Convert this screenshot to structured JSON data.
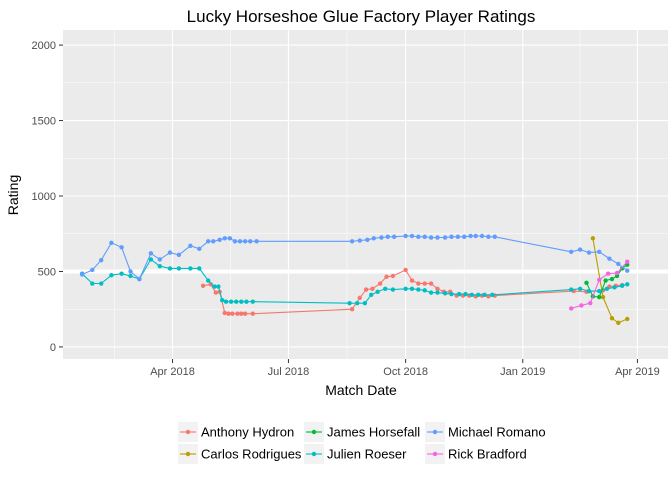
{
  "chart_data": {
    "type": "line",
    "title": "Lucky Horseshoe Glue Factory Player Ratings",
    "xlabel": "Match Date",
    "ylabel": "Rating",
    "xlim": [
      "2018-01-05",
      "2019-04-25"
    ],
    "ylim": [
      -80,
      2100
    ],
    "yticks": [
      0,
      500,
      1000,
      1500,
      2000
    ],
    "xticks": [
      {
        "date": "2018-04-01",
        "label": "Apr 2018"
      },
      {
        "date": "2018-07-01",
        "label": "Jul 2018"
      },
      {
        "date": "2018-10-01",
        "label": "Oct 2018"
      },
      {
        "date": "2019-01-01",
        "label": "Jan 2019"
      },
      {
        "date": "2019-04-01",
        "label": "Apr 2019"
      }
    ],
    "reference_line": 500,
    "grid": true,
    "legend_position": "bottom",
    "series": [
      {
        "name": "Anthony Hydron",
        "color": "#F8766D",
        "points": [
          [
            "2018-04-25",
            405
          ],
          [
            "2018-05-01",
            415
          ],
          [
            "2018-05-05",
            360
          ],
          [
            "2018-05-08",
            365
          ],
          [
            "2018-05-12",
            225
          ],
          [
            "2018-05-15",
            220
          ],
          [
            "2018-05-18",
            220
          ],
          [
            "2018-05-22",
            220
          ],
          [
            "2018-05-25",
            220
          ],
          [
            "2018-05-28",
            220
          ],
          [
            "2018-06-03",
            220
          ],
          [
            "2018-08-20",
            250
          ],
          [
            "2018-08-26",
            325
          ],
          [
            "2018-08-31",
            380
          ],
          [
            "2018-09-05",
            385
          ],
          [
            "2018-09-11",
            420
          ],
          [
            "2018-09-16",
            465
          ],
          [
            "2018-09-21",
            470
          ],
          [
            "2018-10-01",
            510
          ],
          [
            "2018-10-06",
            440
          ],
          [
            "2018-10-11",
            420
          ],
          [
            "2018-10-16",
            420
          ],
          [
            "2018-10-21",
            420
          ],
          [
            "2018-10-26",
            385
          ],
          [
            "2018-10-31",
            365
          ],
          [
            "2018-11-05",
            365
          ],
          [
            "2018-11-10",
            340
          ],
          [
            "2018-11-15",
            340
          ],
          [
            "2018-11-20",
            340
          ],
          [
            "2018-11-25",
            335
          ],
          [
            "2018-11-30",
            340
          ],
          [
            "2018-12-05",
            335
          ],
          [
            "2018-12-10",
            340
          ],
          [
            "2019-02-10",
            370
          ],
          [
            "2019-02-20",
            365
          ],
          [
            "2019-03-05",
            375
          ],
          [
            "2019-03-10",
            400
          ],
          [
            "2019-03-15",
            405
          ],
          [
            "2019-03-20",
            410
          ]
        ]
      },
      {
        "name": "Carlos Rodrigues",
        "color": "#B79F00",
        "points": [
          [
            "2019-02-25",
            720
          ],
          [
            "2019-03-05",
            330
          ],
          [
            "2019-03-12",
            190
          ],
          [
            "2019-03-17",
            160
          ],
          [
            "2019-03-24",
            185
          ]
        ]
      },
      {
        "name": "James Horsefall",
        "color": "#00BA38",
        "points": [
          [
            "2019-02-20",
            425
          ],
          [
            "2019-02-25",
            335
          ],
          [
            "2019-03-02",
            330
          ],
          [
            "2019-03-07",
            440
          ],
          [
            "2019-03-12",
            450
          ],
          [
            "2019-03-16",
            470
          ],
          [
            "2019-03-20",
            520
          ],
          [
            "2019-03-24",
            545
          ]
        ]
      },
      {
        "name": "Julien Roeser",
        "color": "#00BFC4",
        "points": [
          [
            "2018-01-20",
            485
          ],
          [
            "2018-01-28",
            420
          ],
          [
            "2018-02-04",
            420
          ],
          [
            "2018-02-12",
            475
          ],
          [
            "2018-02-20",
            485
          ],
          [
            "2018-02-27",
            470
          ],
          [
            "2018-03-06",
            450
          ],
          [
            "2018-03-15",
            580
          ],
          [
            "2018-03-22",
            535
          ],
          [
            "2018-03-30",
            520
          ],
          [
            "2018-04-06",
            520
          ],
          [
            "2018-04-15",
            520
          ],
          [
            "2018-04-22",
            520
          ],
          [
            "2018-04-29",
            440
          ],
          [
            "2018-05-04",
            400
          ],
          [
            "2018-05-07",
            400
          ],
          [
            "2018-05-10",
            310
          ],
          [
            "2018-05-13",
            300
          ],
          [
            "2018-05-17",
            300
          ],
          [
            "2018-05-21",
            300
          ],
          [
            "2018-05-25",
            300
          ],
          [
            "2018-05-29",
            300
          ],
          [
            "2018-06-03",
            300
          ],
          [
            "2018-08-18",
            290
          ],
          [
            "2018-08-24",
            290
          ],
          [
            "2018-08-30",
            290
          ],
          [
            "2018-09-04",
            345
          ],
          [
            "2018-09-09",
            365
          ],
          [
            "2018-09-15",
            385
          ],
          [
            "2018-09-21",
            380
          ],
          [
            "2018-10-01",
            385
          ],
          [
            "2018-10-06",
            385
          ],
          [
            "2018-10-11",
            380
          ],
          [
            "2018-10-16",
            375
          ],
          [
            "2018-10-21",
            360
          ],
          [
            "2018-10-26",
            360
          ],
          [
            "2018-11-01",
            355
          ],
          [
            "2018-11-06",
            350
          ],
          [
            "2018-11-12",
            350
          ],
          [
            "2018-11-17",
            350
          ],
          [
            "2018-11-22",
            345
          ],
          [
            "2018-11-27",
            345
          ],
          [
            "2018-12-02",
            345
          ],
          [
            "2018-12-08",
            345
          ],
          [
            "2019-02-08",
            380
          ],
          [
            "2019-02-15",
            385
          ],
          [
            "2019-02-22",
            370
          ],
          [
            "2019-03-02",
            370
          ],
          [
            "2019-03-08",
            385
          ],
          [
            "2019-03-14",
            395
          ],
          [
            "2019-03-20",
            405
          ],
          [
            "2019-03-24",
            415
          ]
        ]
      },
      {
        "name": "Michael Romano",
        "color": "#619CFF",
        "points": [
          [
            "2018-01-20",
            480
          ],
          [
            "2018-01-28",
            510
          ],
          [
            "2018-02-04",
            575
          ],
          [
            "2018-02-12",
            690
          ],
          [
            "2018-02-20",
            660
          ],
          [
            "2018-02-27",
            500
          ],
          [
            "2018-03-06",
            450
          ],
          [
            "2018-03-15",
            620
          ],
          [
            "2018-03-22",
            580
          ],
          [
            "2018-03-30",
            625
          ],
          [
            "2018-04-06",
            610
          ],
          [
            "2018-04-15",
            670
          ],
          [
            "2018-04-22",
            650
          ],
          [
            "2018-04-29",
            700
          ],
          [
            "2018-05-03",
            700
          ],
          [
            "2018-05-08",
            710
          ],
          [
            "2018-05-12",
            720
          ],
          [
            "2018-05-16",
            720
          ],
          [
            "2018-05-20",
            700
          ],
          [
            "2018-05-24",
            700
          ],
          [
            "2018-05-28",
            700
          ],
          [
            "2018-06-01",
            700
          ],
          [
            "2018-06-06",
            700
          ],
          [
            "2018-08-20",
            700
          ],
          [
            "2018-08-26",
            705
          ],
          [
            "2018-09-01",
            710
          ],
          [
            "2018-09-06",
            720
          ],
          [
            "2018-09-12",
            725
          ],
          [
            "2018-09-17",
            730
          ],
          [
            "2018-09-22",
            730
          ],
          [
            "2018-10-01",
            735
          ],
          [
            "2018-10-06",
            735
          ],
          [
            "2018-10-11",
            730
          ],
          [
            "2018-10-16",
            730
          ],
          [
            "2018-10-21",
            725
          ],
          [
            "2018-10-26",
            725
          ],
          [
            "2018-11-01",
            725
          ],
          [
            "2018-11-06",
            730
          ],
          [
            "2018-11-11",
            730
          ],
          [
            "2018-11-16",
            730
          ],
          [
            "2018-11-21",
            735
          ],
          [
            "2018-11-25",
            735
          ],
          [
            "2018-11-30",
            735
          ],
          [
            "2018-12-05",
            730
          ],
          [
            "2018-12-10",
            730
          ],
          [
            "2019-02-08",
            630
          ],
          [
            "2019-02-15",
            645
          ],
          [
            "2019-02-22",
            625
          ],
          [
            "2019-03-02",
            630
          ],
          [
            "2019-03-10",
            585
          ],
          [
            "2019-03-17",
            550
          ],
          [
            "2019-03-24",
            505
          ]
        ]
      },
      {
        "name": "Rick Bradford",
        "color": "#F564E3",
        "points": [
          [
            "2019-02-08",
            255
          ],
          [
            "2019-02-16",
            275
          ],
          [
            "2019-02-23",
            290
          ],
          [
            "2019-03-02",
            445
          ],
          [
            "2019-03-09",
            485
          ],
          [
            "2019-03-16",
            490
          ],
          [
            "2019-03-24",
            565
          ]
        ]
      }
    ]
  }
}
